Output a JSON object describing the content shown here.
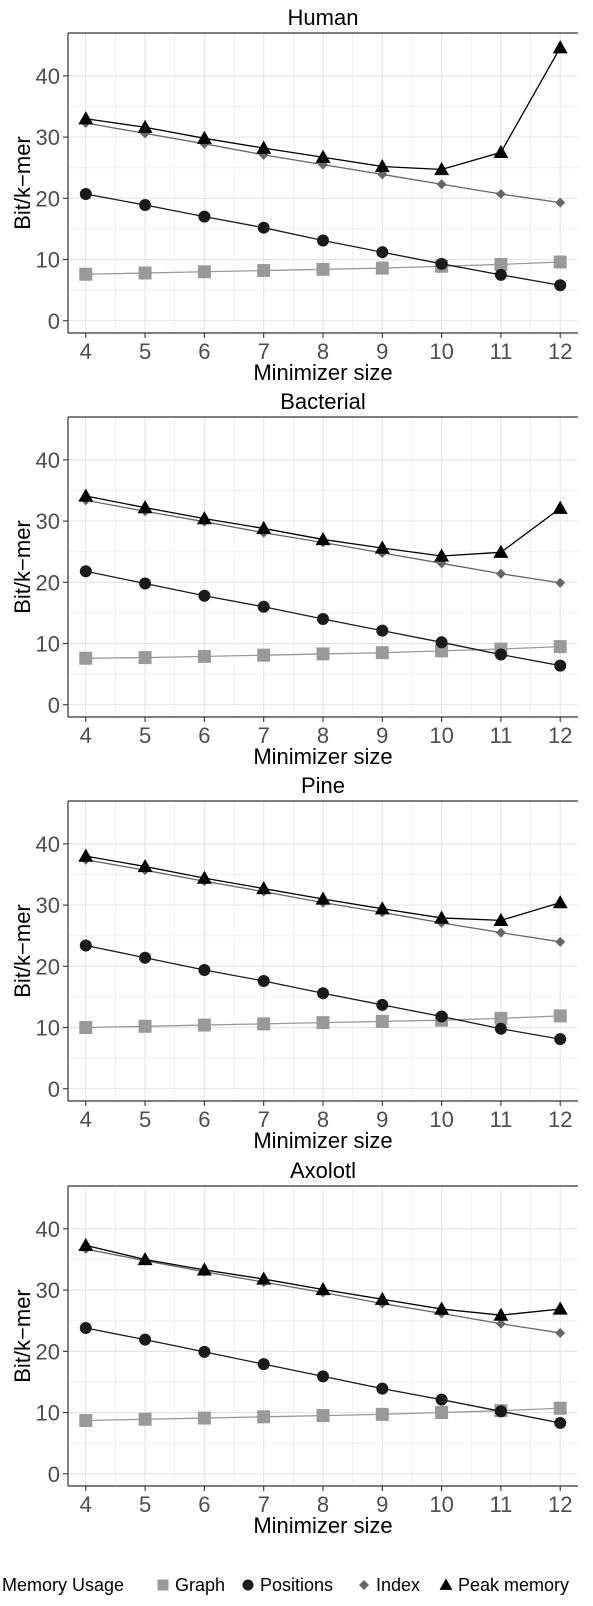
{
  "legend": {
    "title": "Memory Usage",
    "items": [
      {
        "label": "Graph",
        "shape": "square",
        "color": "#999999"
      },
      {
        "label": "Positions",
        "shape": "circle",
        "color": "#1a1a1a"
      },
      {
        "label": "Index",
        "shape": "diamond",
        "color": "#666666"
      },
      {
        "label": "Peak memory",
        "shape": "triangle",
        "color": "#000000"
      }
    ]
  },
  "chart_data": [
    {
      "type": "line",
      "title": "Human",
      "xlabel": "Minimizer size",
      "ylabel": "Bit/k−mer",
      "x": [
        4,
        5,
        6,
        7,
        8,
        9,
        10,
        11,
        12
      ],
      "xlim": [
        3.7,
        12.3
      ],
      "ylim": [
        -2,
        47
      ],
      "yticks": [
        0,
        10,
        20,
        30,
        40
      ],
      "grid": true,
      "series": [
        {
          "name": "Graph",
          "values": [
            7.6,
            7.8,
            8.0,
            8.2,
            8.4,
            8.6,
            8.9,
            9.2,
            9.6
          ]
        },
        {
          "name": "Positions",
          "values": [
            20.7,
            18.9,
            17.0,
            15.2,
            13.1,
            11.2,
            9.3,
            7.5,
            5.8
          ]
        },
        {
          "name": "Index",
          "values": [
            32.3,
            30.6,
            28.9,
            27.1,
            25.5,
            23.9,
            22.3,
            20.7,
            19.3
          ]
        },
        {
          "name": "Peak memory",
          "values": [
            33.0,
            31.6,
            29.8,
            28.2,
            26.7,
            25.2,
            24.7,
            27.5,
            44.6
          ]
        }
      ]
    },
    {
      "type": "line",
      "title": "Bacterial",
      "xlabel": "Minimizer size",
      "ylabel": "Bit/k−mer",
      "x": [
        4,
        5,
        6,
        7,
        8,
        9,
        10,
        11,
        12
      ],
      "xlim": [
        3.7,
        12.3
      ],
      "ylim": [
        -2,
        47
      ],
      "yticks": [
        0,
        10,
        20,
        30,
        40
      ],
      "grid": true,
      "series": [
        {
          "name": "Graph",
          "values": [
            7.6,
            7.7,
            7.9,
            8.1,
            8.3,
            8.5,
            8.8,
            9.1,
            9.5
          ]
        },
        {
          "name": "Positions",
          "values": [
            21.8,
            19.8,
            17.8,
            16.0,
            14.0,
            12.1,
            10.2,
            8.2,
            6.4
          ]
        },
        {
          "name": "Index",
          "values": [
            33.4,
            31.6,
            29.9,
            28.1,
            26.5,
            24.8,
            23.1,
            21.4,
            19.9
          ]
        },
        {
          "name": "Peak memory",
          "values": [
            34.1,
            32.2,
            30.4,
            28.8,
            27.0,
            25.6,
            24.3,
            24.9,
            32.1
          ]
        }
      ]
    },
    {
      "type": "line",
      "title": "Pine",
      "xlabel": "Minimizer size",
      "ylabel": "Bit/k−mer",
      "x": [
        4,
        5,
        6,
        7,
        8,
        9,
        10,
        11,
        12
      ],
      "xlim": [
        3.7,
        12.3
      ],
      "ylim": [
        -2,
        47
      ],
      "yticks": [
        0,
        10,
        20,
        30,
        40
      ],
      "grid": true,
      "series": [
        {
          "name": "Graph",
          "values": [
            10.0,
            10.2,
            10.4,
            10.6,
            10.8,
            11.0,
            11.2,
            11.5,
            11.9
          ]
        },
        {
          "name": "Positions",
          "values": [
            23.4,
            21.4,
            19.4,
            17.6,
            15.6,
            13.7,
            11.8,
            9.8,
            8.1
          ]
        },
        {
          "name": "Index",
          "values": [
            37.4,
            35.7,
            33.9,
            32.2,
            30.4,
            28.8,
            27.1,
            25.5,
            24.0
          ]
        },
        {
          "name": "Peak memory",
          "values": [
            38.0,
            36.3,
            34.4,
            32.7,
            31.0,
            29.4,
            27.9,
            27.5,
            30.4
          ]
        }
      ]
    },
    {
      "type": "line",
      "title": "Axolotl",
      "xlabel": "Minimizer size",
      "ylabel": "Bit/k−mer",
      "x": [
        4,
        5,
        6,
        7,
        8,
        9,
        10,
        11,
        12
      ],
      "xlim": [
        3.7,
        12.3
      ],
      "ylim": [
        -2,
        47
      ],
      "yticks": [
        0,
        10,
        20,
        30,
        40
      ],
      "grid": true,
      "series": [
        {
          "name": "Graph",
          "values": [
            8.7,
            8.9,
            9.1,
            9.3,
            9.5,
            9.7,
            10.0,
            10.3,
            10.7
          ]
        },
        {
          "name": "Positions",
          "values": [
            23.8,
            21.9,
            19.9,
            17.9,
            15.9,
            13.9,
            12.1,
            10.2,
            8.3
          ]
        },
        {
          "name": "Index",
          "values": [
            36.7,
            34.8,
            33.0,
            31.3,
            29.6,
            27.8,
            26.2,
            24.5,
            23.0
          ]
        },
        {
          "name": "Peak memory",
          "values": [
            37.3,
            35.0,
            33.3,
            31.8,
            30.1,
            28.5,
            26.9,
            25.9,
            26.9
          ]
        }
      ]
    }
  ]
}
